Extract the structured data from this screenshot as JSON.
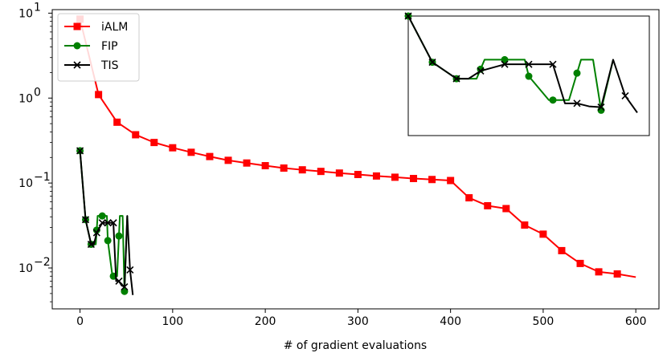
{
  "chart_data": {
    "type": "line",
    "title": "",
    "xlabel": "# of gradient evaluations",
    "ylabel": "",
    "yscale": "log",
    "xlim": [
      -30,
      625
    ],
    "ylim": [
      0.0033,
      11
    ],
    "x_ticks": [
      0,
      100,
      200,
      300,
      400,
      500,
      600
    ],
    "x_tick_labels": [
      "0",
      "100",
      "200",
      "300",
      "400",
      "500",
      "600"
    ],
    "y_ticks": [
      0.01,
      0.1,
      1,
      10
    ],
    "y_tick_labels": [
      {
        "base": "10",
        "exp": "−2"
      },
      {
        "base": "10",
        "exp": "−1"
      },
      {
        "base": "10",
        "exp": "0"
      },
      {
        "base": "10",
        "exp": "1"
      }
    ],
    "legend": {
      "position": "upper left"
    },
    "grid": false,
    "series": [
      {
        "name": "iALM",
        "color": "#ff0000",
        "marker": "square",
        "x": [
          0,
          20,
          40,
          60,
          80,
          100,
          120,
          140,
          160,
          180,
          200,
          220,
          240,
          260,
          280,
          300,
          320,
          340,
          360,
          380,
          400,
          420,
          440,
          460,
          480,
          500,
          520,
          540,
          560,
          580,
          600
        ],
        "y": [
          8.5,
          1.1,
          0.52,
          0.37,
          0.3,
          0.26,
          0.23,
          0.205,
          0.185,
          0.172,
          0.16,
          0.15,
          0.143,
          0.137,
          0.131,
          0.126,
          0.121,
          0.117,
          0.113,
          0.11,
          0.107,
          0.067,
          0.054,
          0.05,
          0.032,
          0.025,
          0.016,
          0.0113,
          0.009,
          0.0085,
          0.0078
        ],
        "marker_x": [
          0,
          20,
          40,
          60,
          80,
          100,
          120,
          140,
          160,
          180,
          200,
          220,
          240,
          260,
          280,
          300,
          320,
          340,
          360,
          380,
          400,
          420,
          440,
          460,
          480,
          500,
          520,
          540,
          560,
          580
        ]
      },
      {
        "name": "FIP",
        "color": "#008000",
        "marker": "circle",
        "x": [
          0,
          6,
          12,
          17,
          19,
          24,
          29,
          30,
          35,
          40,
          43,
          46,
          48,
          51
        ],
        "y": [
          0.24,
          0.037,
          0.019,
          0.019,
          0.041,
          0.041,
          0.041,
          0.021,
          0.008,
          0.008,
          0.041,
          0.041,
          0.0053,
          0.041
        ],
        "marker_x": [
          0,
          6,
          12,
          18,
          24,
          30,
          36,
          42,
          48
        ]
      },
      {
        "name": "TIS",
        "color": "#000000",
        "marker": "x",
        "x": [
          0,
          6,
          12,
          15,
          18,
          24,
          27,
          30,
          36,
          39,
          42,
          45,
          48,
          51,
          54,
          57
        ],
        "y": [
          0.24,
          0.037,
          0.019,
          0.019,
          0.026,
          0.034,
          0.034,
          0.034,
          0.034,
          0.007,
          0.007,
          0.0062,
          0.006,
          0.041,
          0.0095,
          0.0048
        ],
        "marker_x": [
          0,
          6,
          12,
          18,
          24,
          30,
          36,
          42,
          48,
          54
        ]
      }
    ]
  }
}
